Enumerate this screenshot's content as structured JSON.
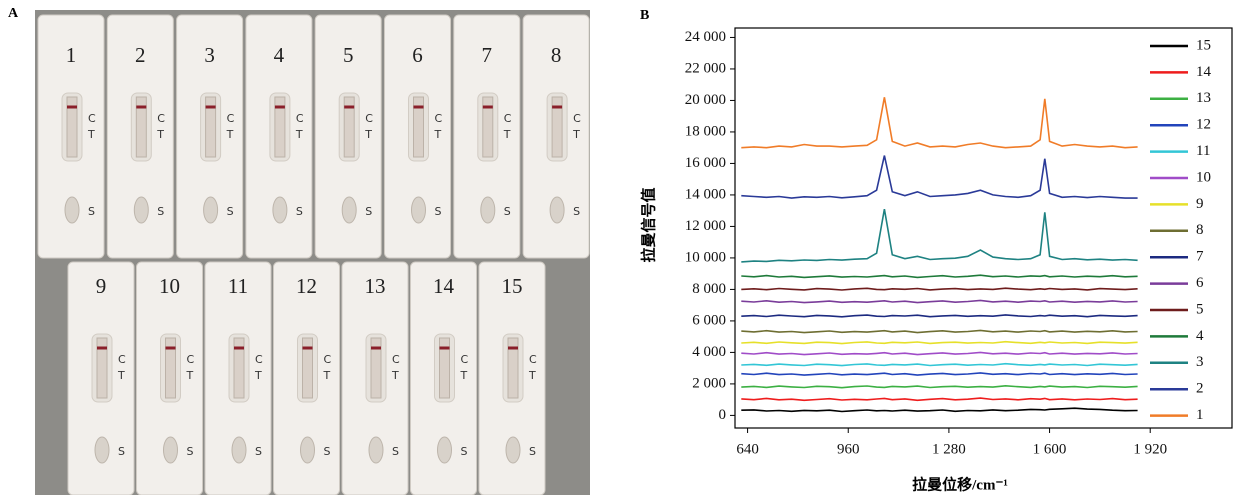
{
  "photo": {
    "panel": "A",
    "strips": [
      "1",
      "2",
      "3",
      "4",
      "5",
      "6",
      "7",
      "8",
      "9",
      "10",
      "11",
      "12",
      "13",
      "14",
      "15"
    ],
    "marks": {
      "c": "C",
      "t": "T",
      "s": "S"
    }
  },
  "chart_data": {
    "type": "line",
    "panel": "B",
    "xlabel": "拉曼位移/cm⁻¹",
    "ylabel": "拉曼信号值",
    "xlim": [
      600,
      2180
    ],
    "ylim": [
      -800,
      24600
    ],
    "xticks": [
      640,
      960,
      {
        "value": 1280,
        "label": "1 280"
      },
      {
        "value": 1600,
        "label": "1 600"
      },
      {
        "value": 1920,
        "label": "1 920"
      }
    ],
    "yticks": [
      0,
      {
        "value": 2000,
        "label": "2 000"
      },
      {
        "value": 4000,
        "label": "4 000"
      },
      {
        "value": 6000,
        "label": "6 000"
      },
      {
        "value": 8000,
        "label": "8 000"
      },
      {
        "value": 10000,
        "label": "10 000"
      },
      {
        "value": 12000,
        "label": "12 000"
      },
      {
        "value": 14000,
        "label": "14 000"
      },
      {
        "value": 16000,
        "label": "16 000"
      },
      {
        "value": 18000,
        "label": "18 000"
      },
      {
        "value": 20000,
        "label": "20 000"
      },
      {
        "value": 22000,
        "label": "22 000"
      },
      {
        "value": 24000,
        "label": "24 000"
      }
    ],
    "legend": "right",
    "x": [
      620,
      660,
      700,
      740,
      780,
      820,
      860,
      900,
      940,
      980,
      1020,
      1050,
      1075,
      1100,
      1140,
      1180,
      1220,
      1260,
      1300,
      1340,
      1380,
      1420,
      1460,
      1500,
      1540,
      1570,
      1585,
      1600,
      1640,
      1680,
      1720,
      1760,
      1800,
      1840,
      1880
    ],
    "series": [
      {
        "name": "15",
        "color": "#000000",
        "values": [
          330,
          350,
          280,
          310,
          260,
          320,
          290,
          330,
          250,
          300,
          340,
          290,
          310,
          280,
          330,
          270,
          300,
          340,
          260,
          310,
          290,
          350,
          300,
          330,
          380,
          360,
          340,
          390,
          420,
          460,
          400,
          380,
          330,
          300,
          310
        ]
      },
      {
        "name": "14",
        "color": "#ee1c1c",
        "values": [
          1050,
          1000,
          1080,
          990,
          1030,
          960,
          1010,
          1060,
          980,
          1020,
          990,
          1040,
          1080,
          1000,
          1050,
          960,
          1020,
          1070,
          990,
          1030,
          1100,
          1010,
          1050,
          990,
          1060,
          1030,
          1080,
          1000,
          1050,
          990,
          1040,
          1010,
          1070,
          1000,
          1030
        ]
      },
      {
        "name": "13",
        "color": "#3cb043",
        "values": [
          1800,
          1840,
          1780,
          1860,
          1810,
          1770,
          1850,
          1820,
          1760,
          1830,
          1870,
          1800,
          1780,
          1840,
          1810,
          1860,
          1770,
          1820,
          1850,
          1790,
          1830,
          1800,
          1880,
          1820,
          1780,
          1840,
          1810,
          1860,
          1800,
          1830,
          1770,
          1850,
          1820,
          1790,
          1840
        ]
      },
      {
        "name": "12",
        "color": "#2244bb",
        "values": [
          2650,
          2600,
          2680,
          2590,
          2630,
          2560,
          2610,
          2660,
          2580,
          2620,
          2590,
          2640,
          2680,
          2600,
          2650,
          2560,
          2620,
          2670,
          2590,
          2630,
          2700,
          2610,
          2650,
          2590,
          2660,
          2630,
          2680,
          2600,
          2650,
          2590,
          2640,
          2610,
          2670,
          2600,
          2630
        ]
      },
      {
        "name": "11",
        "color": "#33c6d6",
        "values": [
          3200,
          3240,
          3180,
          3260,
          3210,
          3170,
          3250,
          3220,
          3160,
          3230,
          3270,
          3200,
          3180,
          3240,
          3210,
          3260,
          3170,
          3220,
          3250,
          3190,
          3230,
          3200,
          3280,
          3220,
          3180,
          3240,
          3210,
          3260,
          3200,
          3230,
          3170,
          3250,
          3220,
          3190,
          3240
        ]
      },
      {
        "name": "10",
        "color": "#a04cc8",
        "values": [
          3950,
          3900,
          3980,
          3890,
          3930,
          3860,
          3910,
          3960,
          3880,
          3920,
          3890,
          3940,
          3980,
          3900,
          3950,
          3860,
          3920,
          3970,
          3890,
          3930,
          4000,
          3910,
          3950,
          3890,
          3960,
          3930,
          3980,
          3900,
          3950,
          3890,
          3940,
          3910,
          3970,
          3900,
          3930
        ]
      },
      {
        "name": "9",
        "color": "#e6e02a",
        "values": [
          4600,
          4640,
          4580,
          4660,
          4610,
          4570,
          4650,
          4620,
          4560,
          4630,
          4670,
          4600,
          4580,
          4640,
          4610,
          4660,
          4570,
          4620,
          4650,
          4590,
          4630,
          4600,
          4680,
          4620,
          4580,
          4640,
          4610,
          4660,
          4600,
          4630,
          4570,
          4650,
          4620,
          4590,
          4640
        ]
      },
      {
        "name": "8",
        "color": "#6e6e32",
        "values": [
          5350,
          5300,
          5380,
          5290,
          5330,
          5260,
          5310,
          5360,
          5280,
          5320,
          5290,
          5340,
          5380,
          5300,
          5350,
          5260,
          5320,
          5370,
          5290,
          5330,
          5400,
          5310,
          5350,
          5290,
          5360,
          5330,
          5380,
          5300,
          5350,
          5290,
          5340,
          5310,
          5370,
          5300,
          5330
        ]
      },
      {
        "name": "7",
        "color": "#1c2a80",
        "values": [
          6300,
          6340,
          6280,
          6360,
          6310,
          6270,
          6350,
          6320,
          6260,
          6330,
          6370,
          6300,
          6280,
          6340,
          6310,
          6360,
          6270,
          6320,
          6350,
          6290,
          6330,
          6300,
          6380,
          6320,
          6280,
          6340,
          6310,
          6360,
          6300,
          6330,
          6270,
          6350,
          6320,
          6290,
          6340
        ]
      },
      {
        "name": "6",
        "color": "#7a3c9a",
        "values": [
          7250,
          7200,
          7280,
          7190,
          7230,
          7160,
          7210,
          7260,
          7180,
          7220,
          7190,
          7240,
          7280,
          7200,
          7250,
          7160,
          7220,
          7270,
          7190,
          7230,
          7300,
          7210,
          7250,
          7190,
          7260,
          7230,
          7280,
          7200,
          7250,
          7190,
          7240,
          7210,
          7270,
          7200,
          7230
        ]
      },
      {
        "name": "5",
        "color": "#6e1c1c",
        "values": [
          8000,
          8040,
          7980,
          8060,
          8010,
          7970,
          8050,
          8020,
          7960,
          8030,
          8070,
          8000,
          7980,
          8040,
          8010,
          8060,
          7970,
          8020,
          8050,
          7990,
          8030,
          8000,
          8080,
          8020,
          7980,
          8040,
          8010,
          8060,
          8000,
          8030,
          7970,
          8050,
          8020,
          7990,
          8040
        ]
      },
      {
        "name": "4",
        "color": "#1e7a3a",
        "values": [
          8850,
          8800,
          8880,
          8790,
          8830,
          8760,
          8810,
          8860,
          8780,
          8820,
          8790,
          8840,
          8880,
          8800,
          8850,
          8760,
          8820,
          8870,
          8790,
          8830,
          8900,
          8810,
          8850,
          8790,
          8860,
          8830,
          8880,
          8800,
          8850,
          8790,
          8840,
          8810,
          8870,
          8800,
          8830
        ]
      },
      {
        "name": "3",
        "color": "#1e8282",
        "values": [
          9750,
          9800,
          9780,
          9850,
          9820,
          9870,
          9840,
          9900,
          9860,
          9920,
          9950,
          10300,
          13100,
          10200,
          9950,
          10100,
          9900,
          9950,
          9980,
          10100,
          10500,
          10050,
          9950,
          9900,
          9950,
          10200,
          12900,
          10100,
          9900,
          9950,
          9880,
          9920,
          9860,
          9900,
          9850
        ]
      },
      {
        "name": "2",
        "color": "#2a3a98",
        "values": [
          13950,
          13900,
          13850,
          13900,
          13800,
          13880,
          13850,
          13900,
          13820,
          13880,
          13950,
          14300,
          16500,
          14200,
          13950,
          14200,
          13900,
          13950,
          14000,
          14100,
          14300,
          14000,
          13900,
          13850,
          13950,
          14300,
          16300,
          14100,
          13850,
          13900,
          13830,
          13900,
          13850,
          13800,
          13800
        ]
      },
      {
        "name": "1",
        "color": "#f07c28",
        "values": [
          17000,
          17050,
          17000,
          17100,
          17050,
          17200,
          17100,
          17100,
          17050,
          17100,
          17150,
          17500,
          20200,
          17400,
          17100,
          17300,
          17050,
          17100,
          17050,
          17200,
          17300,
          17100,
          17000,
          17050,
          17100,
          17500,
          20100,
          17400,
          17100,
          17200,
          17100,
          17050,
          17100,
          17000,
          17050
        ]
      }
    ]
  }
}
